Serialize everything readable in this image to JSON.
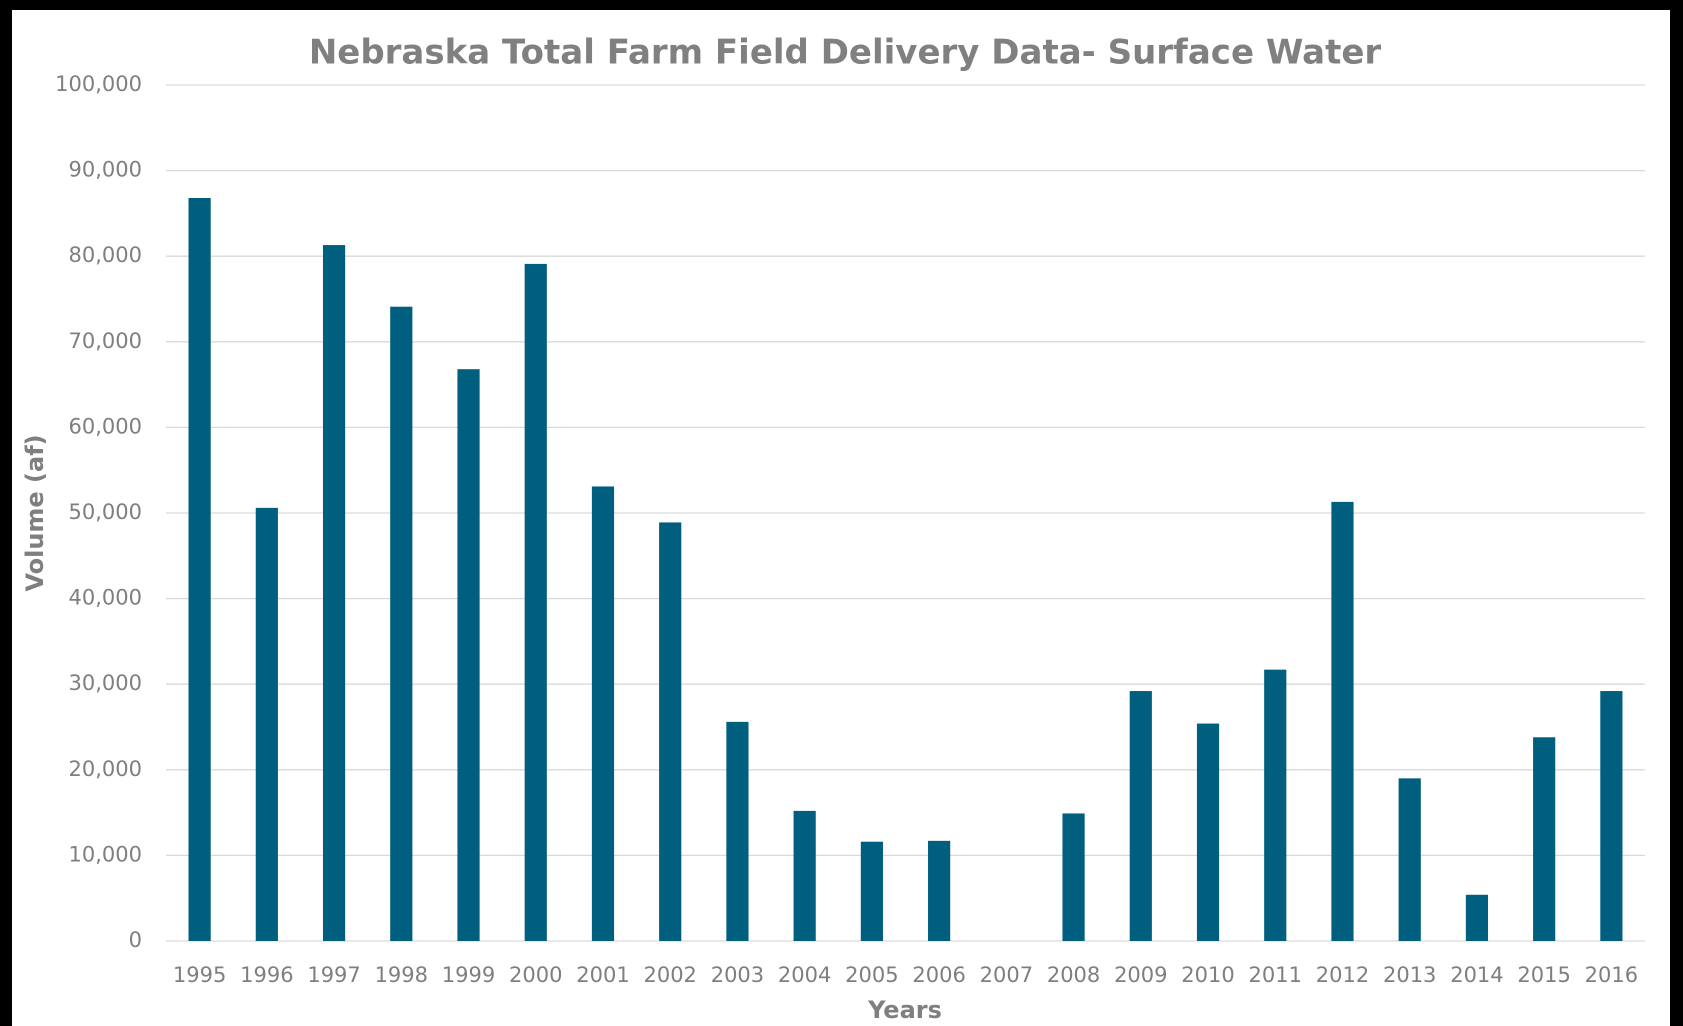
{
  "chart_data": {
    "type": "bar",
    "title": "Nebraska Total Farm Field Delivery Data- Surface Water",
    "x_label": "Years",
    "y_label": "Volume (af)",
    "categories": [
      "1995",
      "1996",
      "1997",
      "1998",
      "1999",
      "2000",
      "2001",
      "2002",
      "2003",
      "2004",
      "2005",
      "2006",
      "2007",
      "2008",
      "2009",
      "2010",
      "2011",
      "2012",
      "2013",
      "2014",
      "2015",
      "2016"
    ],
    "values": [
      86800,
      50600,
      81300,
      74100,
      66800,
      79100,
      53100,
      48900,
      25600,
      15200,
      11600,
      11700,
      null,
      14900,
      29200,
      25400,
      31700,
      51300,
      19000,
      5400,
      23800,
      29200
    ],
    "color": "#005f7f",
    "ylim": [
      0,
      100000
    ],
    "yticks": [
      0,
      {
        "value": 10000,
        "label": "10,000"
      },
      {
        "value": 20000,
        "label": "20,000"
      },
      {
        "value": 30000,
        "label": "30,000"
      },
      {
        "value": 40000,
        "label": "40,000"
      },
      {
        "value": 50000,
        "label": "50,000"
      },
      {
        "value": 60000,
        "label": "60,000"
      },
      {
        "value": 70000,
        "label": "70,000"
      },
      {
        "value": 80000,
        "label": "80,000"
      },
      {
        "value": 90000,
        "label": "90,000"
      },
      {
        "value": 100000,
        "label": "100,000"
      }
    ],
    "grid": true
  }
}
